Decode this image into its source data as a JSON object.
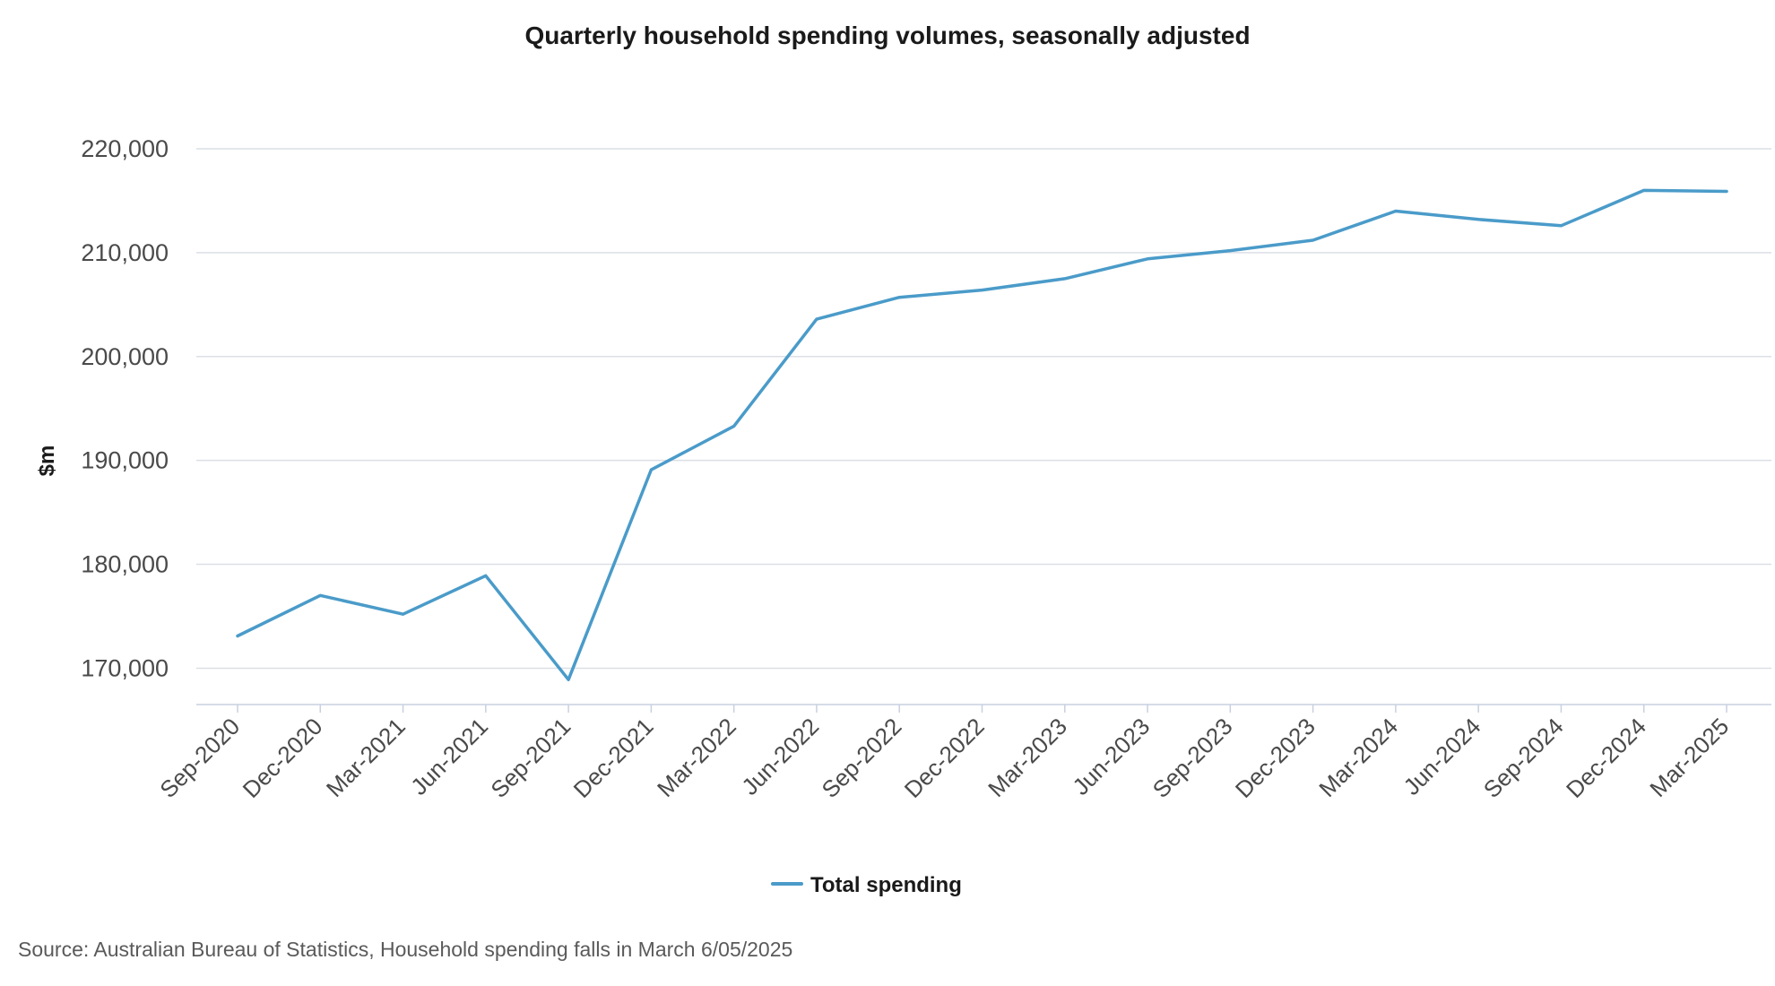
{
  "chart_data": {
    "type": "line",
    "title": "Quarterly household spending volumes, seasonally adjusted",
    "xlabel": "",
    "ylabel": "$m",
    "categories": [
      "Sep-2020",
      "Dec-2020",
      "Mar-2021",
      "Jun-2021",
      "Sep-2021",
      "Dec-2021",
      "Mar-2022",
      "Jun-2022",
      "Sep-2022",
      "Dec-2022",
      "Mar-2023",
      "Jun-2023",
      "Sep-2023",
      "Dec-2023",
      "Mar-2024",
      "Jun-2024",
      "Sep-2024",
      "Dec-2024",
      "Mar-2025"
    ],
    "y_ticks": [
      170000,
      180000,
      190000,
      200000,
      210000,
      220000
    ],
    "y_tick_labels": [
      "170,000",
      "180,000",
      "190,000",
      "200,000",
      "210,000",
      "220,000"
    ],
    "ylim": [
      166500,
      220000
    ],
    "grid": true,
    "legend_position": "bottom-center",
    "series": [
      {
        "name": "Total spending",
        "color": "#4a9bc9",
        "values": [
          173100,
          177000,
          175200,
          178900,
          168900,
          189100,
          193300,
          203600,
          205700,
          206400,
          207500,
          209400,
          210200,
          211200,
          214000,
          213200,
          212600,
          216000,
          215900
        ]
      }
    ]
  },
  "source": "Source: Australian Bureau of Statistics, Household spending falls in March 6/05/2025"
}
